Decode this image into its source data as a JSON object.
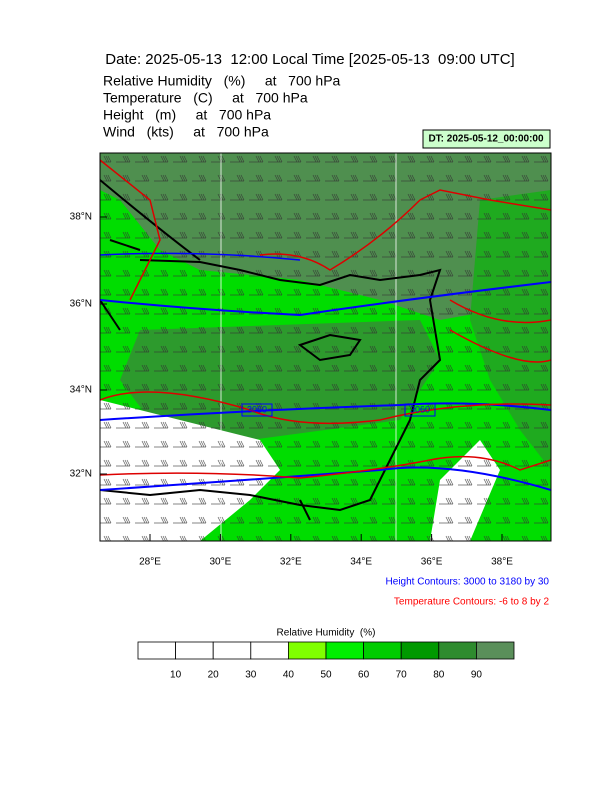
{
  "header": {
    "title": "Date: 2025-05-13  12:00 Local Time [2025-05-13  09:00 UTC]",
    "fields": [
      "Relative Humidity   (%)     at   700 hPa",
      "Temperature   (C)     at   700 hPa",
      "Height   (m)     at   700 hPa",
      "Wind   (kts)     at   700 hPa"
    ],
    "valid_label": "DT: 2025-05-12_00:00:00"
  },
  "map": {
    "lat_labels": [
      "38°N",
      "36°N",
      "34°N",
      "32°N"
    ],
    "lon_labels": [
      "28°E",
      "30°E",
      "32°E",
      "34°E",
      "36°E",
      "38°E"
    ],
    "contour_labels": [
      "3060",
      "3060"
    ]
  },
  "contour_notes": [
    {
      "text": "Height Contours: 3000 to 3180 by 30",
      "color": "#0000ff"
    },
    {
      "text": "Temperature Contours: -6 to 8 by 2",
      "color": "#ff0000"
    }
  ],
  "colorbar": {
    "title": "Relative Humidity  (%)",
    "labels": [
      10,
      20,
      30,
      40,
      50,
      60,
      70,
      80,
      90
    ],
    "colors": [
      "#ffffff",
      "#ffffff",
      "#ffffff",
      "#ffffff",
      "#80ff00",
      "#00ee00",
      "#00cc00",
      "#009900",
      "#2e8b2e",
      "#5a8f5a"
    ]
  }
}
